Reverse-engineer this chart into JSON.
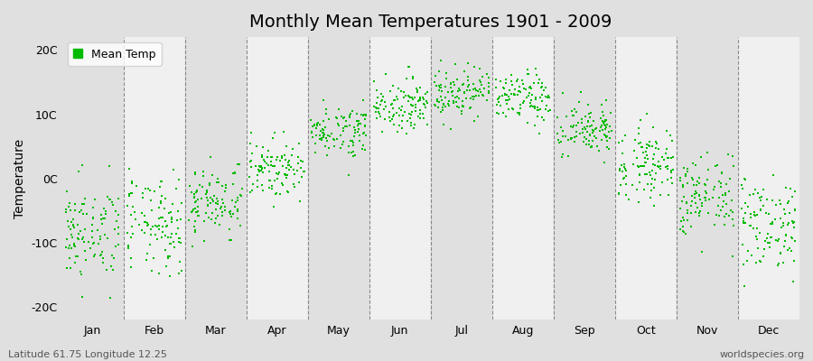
{
  "title": "Monthly Mean Temperatures 1901 - 2009",
  "ylabel": "Temperature",
  "months": [
    "Jan",
    "Feb",
    "Mar",
    "Apr",
    "May",
    "Jun",
    "Jul",
    "Aug",
    "Sep",
    "Oct",
    "Nov",
    "Dec"
  ],
  "monthly_means": [
    -8.5,
    -7.5,
    -3.5,
    1.5,
    7.5,
    11.5,
    13.5,
    12.5,
    7.5,
    2.5,
    -3.0,
    -7.0
  ],
  "monthly_stds": [
    3.8,
    3.8,
    2.8,
    2.2,
    2.0,
    2.0,
    2.0,
    2.0,
    2.2,
    2.8,
    3.2,
    3.8
  ],
  "n_years": 109,
  "seed": 42,
  "dot_color": "#00BB00",
  "dot_size": 2,
  "background_dark": "#E0E0E0",
  "background_light": "#F0F0F0",
  "title_fontsize": 14,
  "axis_fontsize": 10,
  "tick_fontsize": 9,
  "legend_label": "Mean Temp",
  "footer_left": "Latitude 61.75 Longitude 12.25",
  "footer_right": "worldspecies.org",
  "ylim": [
    -22,
    22
  ],
  "yticks": [
    -20,
    -10,
    0,
    10,
    20
  ],
  "ytick_labels": [
    "-20C",
    "-10C",
    "0C",
    "10C",
    "20C"
  ]
}
